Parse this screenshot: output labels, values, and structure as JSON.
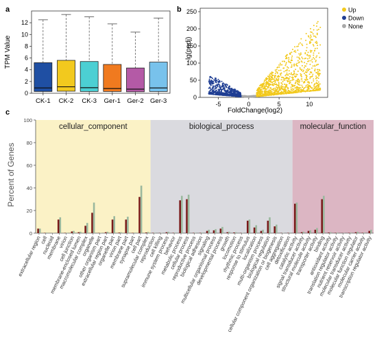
{
  "panels": {
    "a": "a",
    "b": "b",
    "c": "c"
  },
  "chart_data": [
    {
      "panel": "a",
      "type": "box",
      "categories": [
        "CK-1",
        "CK-2",
        "CK-3",
        "Ger-1",
        "Ger-2",
        "Ger-3"
      ],
      "colors": [
        "#1f4fa3",
        "#f2c91e",
        "#4ccfd3",
        "#f07a1f",
        "#b45aa6",
        "#78c2ec"
      ],
      "boxes": [
        {
          "min": 0.0,
          "q1": 0.3,
          "median": 0.9,
          "q3": 5.2,
          "max": 12.5
        },
        {
          "min": 0.0,
          "q1": 0.35,
          "median": 1.1,
          "q3": 5.6,
          "max": 13.4
        },
        {
          "min": 0.0,
          "q1": 0.3,
          "median": 0.95,
          "q3": 5.4,
          "max": 13.0
        },
        {
          "min": 0.0,
          "q1": 0.3,
          "median": 0.8,
          "q3": 4.9,
          "max": 11.8
        },
        {
          "min": 0.0,
          "q1": 0.25,
          "median": 0.7,
          "q3": 4.3,
          "max": 10.4
        },
        {
          "min": 0.0,
          "q1": 0.3,
          "median": 0.9,
          "q3": 5.3,
          "max": 12.8
        }
      ],
      "ylabel": "TPM Value",
      "ylim": [
        0,
        14
      ],
      "yticks": [
        0,
        2,
        4,
        6,
        8,
        10,
        12
      ]
    },
    {
      "panel": "b",
      "type": "scatter",
      "xlabel": "FoldChange(log2)",
      "ylabel": "-lg(padj)",
      "xlim": [
        -8,
        13
      ],
      "ylim": [
        0,
        260
      ],
      "xticks": [
        -5,
        0,
        5,
        10
      ],
      "yticks": [
        0,
        50,
        100,
        150,
        200,
        250
      ],
      "legend": {
        "placement": "right",
        "entries": [
          {
            "name": "Up",
            "color": "#f2c91e"
          },
          {
            "name": "Down",
            "color": "#1f3e93"
          },
          {
            "name": "None",
            "color": "#a8a8a8"
          }
        ]
      }
    },
    {
      "panel": "c",
      "type": "bar",
      "ylabel": "Percent of Genes",
      "ylim": [
        0,
        100
      ],
      "yticks": [
        0,
        20,
        40,
        60,
        80,
        100
      ],
      "categories": [
        "extracellular region",
        "cell",
        "nucleoid",
        "membrane",
        "virion",
        "cell junction",
        "membrane-enclosed lumen",
        "macromolecular complex",
        "organelle",
        "other organism part",
        "extracellular region part",
        "organelle part",
        "virion part",
        "membrane part",
        "synapse part",
        "cell part",
        "supramolecular complex",
        "reproduction",
        "cell killing",
        "immune system process",
        "behavior",
        "metabolic process",
        "cellular process",
        "reproductive process",
        "biological adhesion",
        "signaling",
        "multicellular organismal process",
        "developmental process",
        "growth",
        "locomotion",
        "rhythmic process",
        "response to stimulus",
        "localization",
        "multi-organism process",
        "biological regulation",
        "cellular component organization or biogenesis",
        "cell aggregation",
        "detoxification",
        "catalytic activity",
        "signal transducer activity",
        "structural molecule activity",
        "transporter activity",
        "binding",
        "antioxidant activity",
        "translation regulator activity",
        "nutrient reservoir activity",
        "molecular transducer activity",
        "molecular function regulator",
        "molecular carrier activity",
        "transcription regulator activity"
      ],
      "groups": [
        {
          "name": "cellular_component",
          "start": 0,
          "count": 17,
          "color": "#fbf2c6"
        },
        {
          "name": "biological_process",
          "start": 17,
          "count": 21,
          "color": "#dadadf"
        },
        {
          "name": "molecular_function",
          "start": 38,
          "count": 12,
          "color": "#dcb6c3"
        }
      ],
      "series": [
        {
          "color": "#7a1a1a",
          "values": [
            4,
            0.3,
            0,
            12,
            0.3,
            1.5,
            0.8,
            6.5,
            18,
            0.2,
            0.8,
            12,
            0.5,
            12,
            0.3,
            32,
            0.6,
            0.3,
            0.2,
            0.8,
            0.3,
            29,
            30,
            0.3,
            0.3,
            2,
            2.5,
            4,
            0.8,
            0.6,
            0.2,
            11,
            5,
            2,
            11,
            6,
            0.2,
            0.3,
            26,
            0.8,
            2,
            3,
            30,
            0.5,
            0.3,
            0.1,
            0.3,
            0.8,
            0.3,
            2
          ]
        },
        {
          "color": "#9ab89e",
          "values": [
            4,
            0.5,
            0.2,
            14,
            0.4,
            2,
            1.2,
            9,
            27,
            0.3,
            1.2,
            15,
            0.8,
            14.5,
            0.5,
            42,
            1,
            0.4,
            0.3,
            1.2,
            0.5,
            33,
            34,
            0.4,
            0.5,
            3,
            3.5,
            5.5,
            1.2,
            0.8,
            0.3,
            12,
            7,
            3,
            14,
            7.5,
            0.3,
            0.5,
            27,
            1.2,
            2.5,
            4.5,
            33,
            0.8,
            0.5,
            0.2,
            0.5,
            1.2,
            0.5,
            3
          ]
        }
      ]
    }
  ]
}
